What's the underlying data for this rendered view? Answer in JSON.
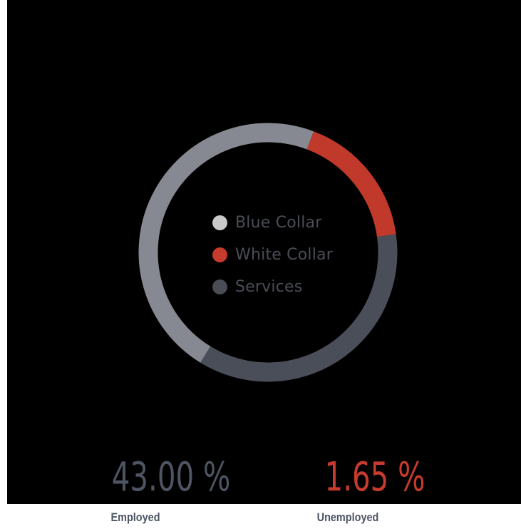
{
  "chart_data": {
    "type": "pie",
    "style": "donut",
    "categories": [
      "Blue Collar",
      "White Collar",
      "Services"
    ],
    "values": [
      47,
      17,
      36
    ],
    "value_unit": "percent (estimated)",
    "colors": [
      "#868991",
      "#c0392b",
      "#4a4e58"
    ],
    "legend": {
      "placement": "center",
      "items": [
        {
          "label": "Blue Collar",
          "color": "#c9c9c9"
        },
        {
          "label": "White Collar",
          "color": "#c73a2e"
        },
        {
          "label": "Services",
          "color": "#4a4d56"
        }
      ]
    }
  },
  "stats": {
    "employed": {
      "value": "43.00 %",
      "label": "Employed",
      "color": "#4d5563"
    },
    "unemployed": {
      "value": "1.65 %",
      "label": "Unemployed",
      "color": "#c73a2e"
    }
  },
  "colors": {
    "background": "#000000",
    "page": "#ffffff"
  }
}
